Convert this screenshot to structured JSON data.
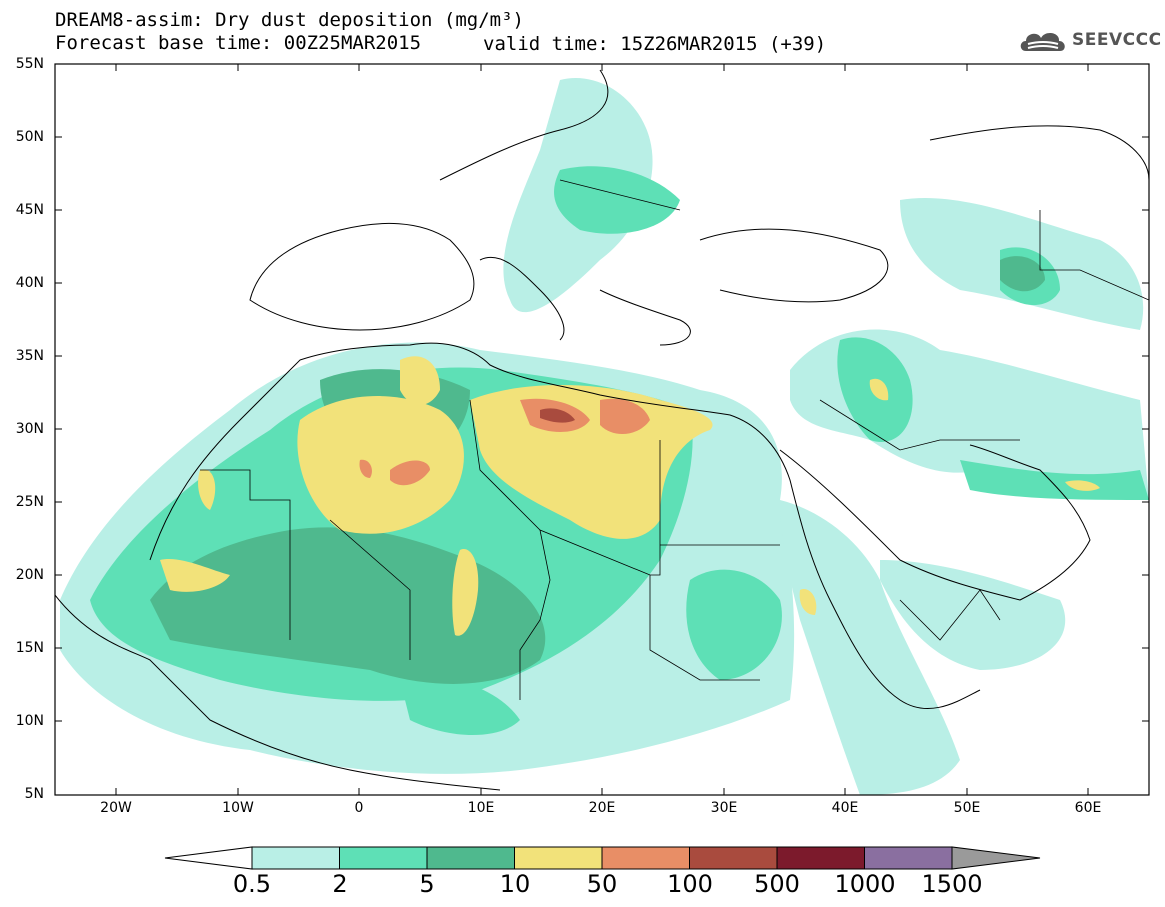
{
  "title": {
    "line1": "DREAM8-assim: Dry dust deposition (mg/m³)",
    "line2_left": "Forecast base time: 00Z25MAR2015",
    "line2_right": "valid time: 15Z26MAR2015 (+39)"
  },
  "logo": {
    "icon": "cloud-logo-icon",
    "text": "SEEVCCC"
  },
  "axes": {
    "lat_labels": [
      "55N",
      "50N",
      "45N",
      "40N",
      "35N",
      "30N",
      "25N",
      "20N",
      "15N",
      "10N",
      "5N"
    ],
    "lon_labels": [
      "20W",
      "10W",
      "0",
      "10E",
      "20E",
      "30E",
      "40E",
      "50E",
      "60E"
    ]
  },
  "legend": {
    "labels": [
      "0.5",
      "2",
      "5",
      "10",
      "50",
      "100",
      "500",
      "1000",
      "1500"
    ],
    "colors": [
      "#b9efe6",
      "#5ee0b6",
      "#4fb98e",
      "#f2e27a",
      "#e88e66",
      "#a94b3e",
      "#7c1a2c",
      "#8a6fa0"
    ],
    "under_color": "#ffffff",
    "over_color": "#9a9a9a"
  }
}
